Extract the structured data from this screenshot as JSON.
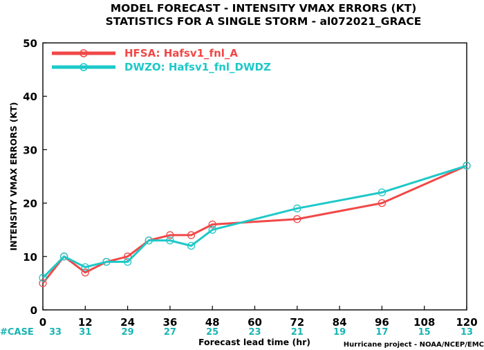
{
  "chart_data": {
    "type": "line",
    "title": "MODEL FORECAST - INTENSITY VMAX ERRORS (KT)",
    "subtitle": "STATISTICS FOR A SINGLE STORM - al072021_GRACE",
    "xlabel": "Forecast lead time (hr)",
    "ylabel": "INTENSITY VMAX ERRORS (KT)",
    "xlim": [
      0,
      120
    ],
    "ylim": [
      0,
      50
    ],
    "x_ticks": [
      0,
      12,
      24,
      36,
      48,
      60,
      72,
      84,
      96,
      108,
      120
    ],
    "y_ticks": [
      0,
      10,
      20,
      30,
      40,
      50
    ],
    "grid": false,
    "legend_position": "top-left",
    "case_label": "#CASE",
    "case_x": [
      0,
      12,
      24,
      36,
      48,
      60,
      72,
      84,
      96,
      108,
      120
    ],
    "case_counts": [
      33,
      31,
      29,
      27,
      25,
      23,
      21,
      19,
      17,
      15,
      13
    ],
    "case_color": "#1ab4b4",
    "credit": "Hurricane project - NOAA/NCEP/EMC",
    "series": [
      {
        "name": "HFSA: Hafsv1_fnl_A",
        "color": "#f04848",
        "x": [
          0,
          6,
          12,
          18,
          24,
          30,
          36,
          42,
          48,
          72,
          96,
          120
        ],
        "y": [
          5,
          10,
          7,
          9,
          10,
          13,
          14,
          14,
          16,
          17,
          20,
          27
        ]
      },
      {
        "name": "DWZO: Hafsv1_fnl_DWDZ",
        "color": "#1ec8c8",
        "x": [
          0,
          6,
          12,
          18,
          24,
          30,
          36,
          42,
          48,
          72,
          96,
          120
        ],
        "y": [
          6,
          10,
          8,
          9,
          9,
          13,
          13,
          12,
          15,
          19,
          22,
          27
        ]
      }
    ]
  }
}
